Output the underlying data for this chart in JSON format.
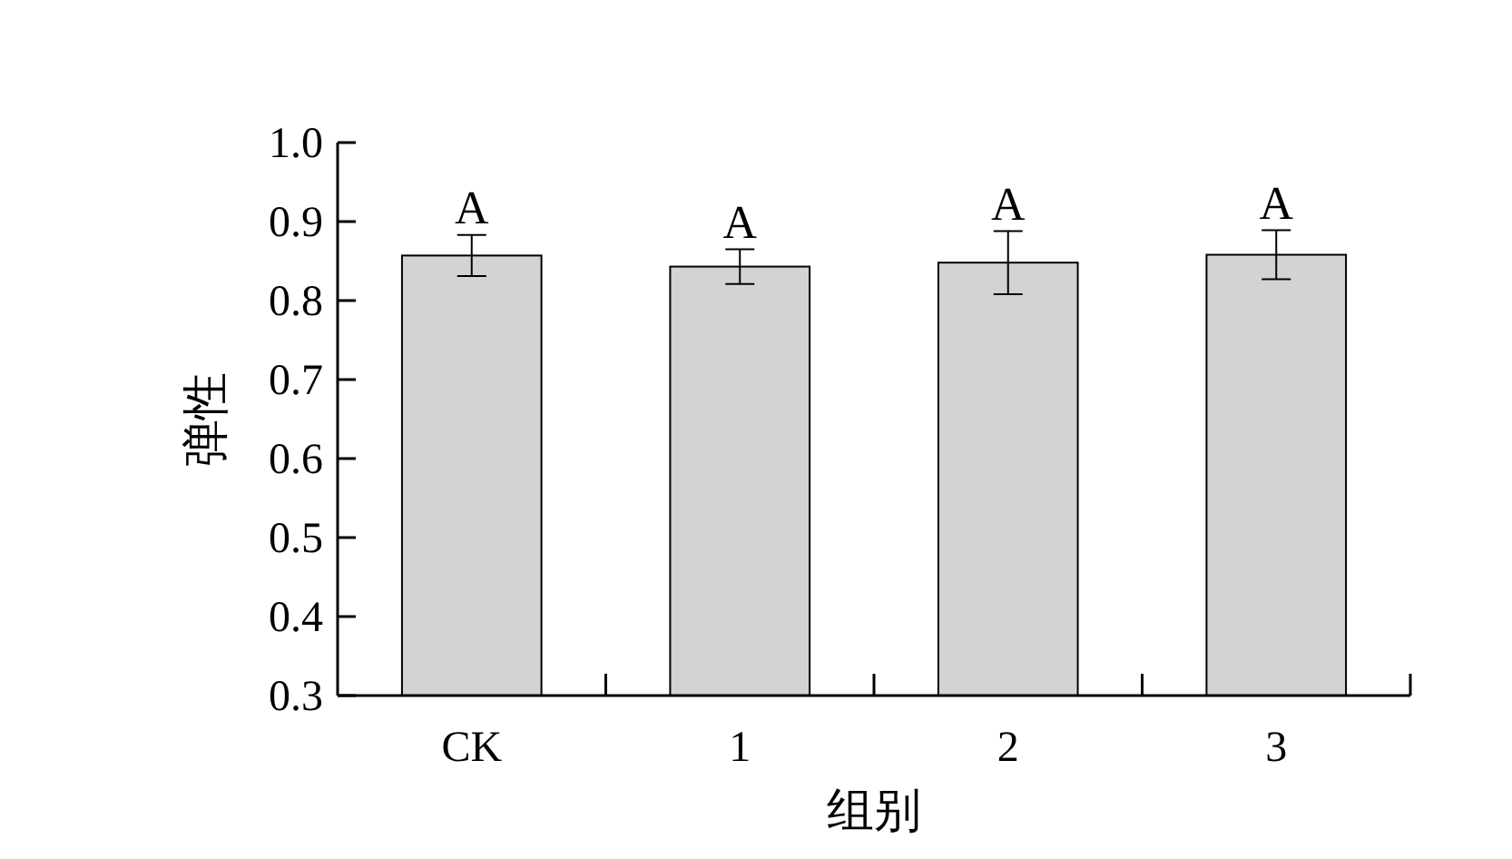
{
  "chart_data": {
    "type": "bar",
    "xlabel": "组别",
    "ylabel": "弹性",
    "categories": [
      "CK",
      "1",
      "2",
      "3"
    ],
    "values": [
      0.857,
      0.843,
      0.848,
      0.858
    ],
    "errors": [
      0.026,
      0.022,
      0.04,
      0.031
    ],
    "color": "#d3d3d3",
    "ylim": [
      0.3,
      1.0
    ],
    "yticks": [
      {
        "value": 0.3,
        "label": "0.3"
      },
      {
        "value": 0.4,
        "label": "0.4"
      },
      {
        "value": 0.5,
        "label": "0.5"
      },
      {
        "value": 0.6,
        "label": "0.6"
      },
      {
        "value": 0.7,
        "label": "0.7"
      },
      {
        "value": 0.8,
        "label": "0.8"
      },
      {
        "value": 0.9,
        "label": "0.9"
      },
      {
        "value": 1.0,
        "label": "1.0"
      }
    ],
    "grid": false,
    "annotations": [
      {
        "text": "A",
        "x": "CK",
        "y": 0.884
      },
      {
        "text": "A",
        "x": "1",
        "y": 0.866
      },
      {
        "text": "A",
        "x": "2",
        "y": 0.888
      },
      {
        "text": "A",
        "x": "3",
        "y": 0.89
      }
    ]
  }
}
